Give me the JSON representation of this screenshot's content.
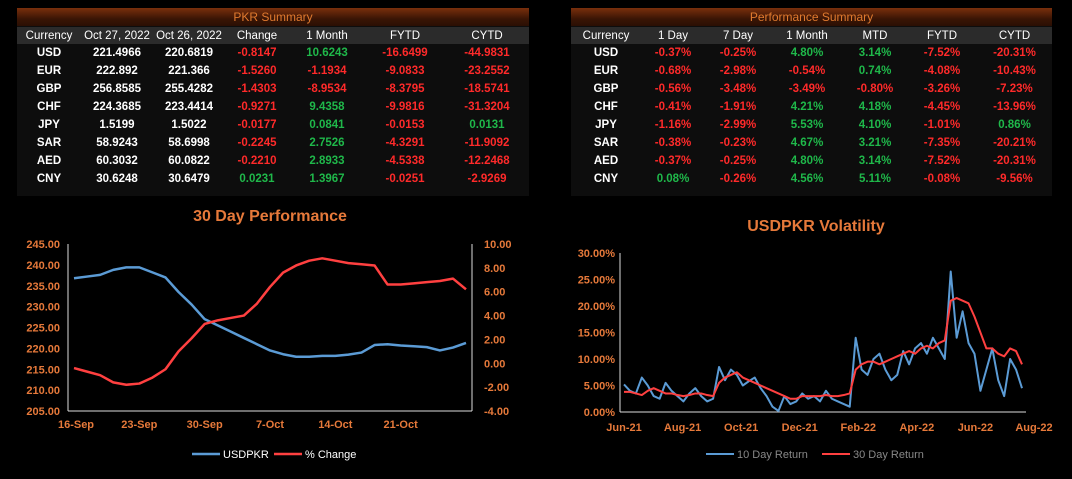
{
  "pkr_summary": {
    "title": "PKR Summary",
    "headers": [
      "Currency",
      "Oct 27, 2022",
      "Oct 26, 2022",
      "Change",
      "1 Month",
      "FYTD",
      "CYTD"
    ],
    "rows": [
      [
        "USD",
        "221.4966",
        "220.6819",
        "-0.8147",
        "10.6243",
        "-16.6499",
        "-44.9831"
      ],
      [
        "EUR",
        "222.892",
        "221.366",
        "-1.5260",
        "-1.1934",
        "-9.0833",
        "-23.2552"
      ],
      [
        "GBP",
        "256.8585",
        "255.4282",
        "-1.4303",
        "-8.9534",
        "-8.3795",
        "-18.5741"
      ],
      [
        "CHF",
        "224.3685",
        "223.4414",
        "-0.9271",
        "9.4358",
        "-9.9816",
        "-31.3204"
      ],
      [
        "JPY",
        "1.5199",
        "1.5022",
        "-0.0177",
        "0.0841",
        "-0.0153",
        "0.0131"
      ],
      [
        "SAR",
        "58.9243",
        "58.6998",
        "-0.2245",
        "2.7526",
        "-4.3291",
        "-11.9092"
      ],
      [
        "AED",
        "60.3032",
        "60.0822",
        "-0.2210",
        "2.8933",
        "-4.5338",
        "-12.2468"
      ],
      [
        "CNY",
        "30.6248",
        "30.6479",
        "0.0231",
        "1.3967",
        "-0.0251",
        "-2.9269"
      ]
    ]
  },
  "performance_summary": {
    "title": "Performance Summary",
    "headers": [
      "Currency",
      "1 Day",
      "7 Day",
      "1 Month",
      "MTD",
      "FYTD",
      "CYTD"
    ],
    "rows": [
      [
        "USD",
        "-0.37%",
        "-0.25%",
        "4.80%",
        "3.14%",
        "-7.52%",
        "-20.31%"
      ],
      [
        "EUR",
        "-0.68%",
        "-2.98%",
        "-0.54%",
        "0.74%",
        "-4.08%",
        "-10.43%"
      ],
      [
        "GBP",
        "-0.56%",
        "-3.48%",
        "-3.49%",
        "-0.80%",
        "-3.26%",
        "-7.23%"
      ],
      [
        "CHF",
        "-0.41%",
        "-1.91%",
        "4.21%",
        "4.18%",
        "-4.45%",
        "-13.96%"
      ],
      [
        "JPY",
        "-1.16%",
        "-2.99%",
        "5.53%",
        "4.10%",
        "-1.01%",
        "0.86%"
      ],
      [
        "SAR",
        "-0.38%",
        "-0.23%",
        "4.67%",
        "3.21%",
        "-7.35%",
        "-20.21%"
      ],
      [
        "AED",
        "-0.37%",
        "-0.25%",
        "4.80%",
        "3.14%",
        "-7.52%",
        "-20.31%"
      ],
      [
        "CNY",
        "0.08%",
        "-0.26%",
        "4.56%",
        "5.11%",
        "-0.08%",
        "-9.56%"
      ]
    ]
  },
  "chart_data": [
    {
      "type": "line",
      "title": "30 Day Performance",
      "x_ticks": [
        "16-Sep",
        "23-Sep",
        "30-Sep",
        "7-Oct",
        "14-Oct",
        "21-Oct"
      ],
      "y_left": {
        "ticks": [
          "205.00",
          "210.00",
          "215.00",
          "220.00",
          "225.00",
          "230.00",
          "235.00",
          "240.00",
          "245.00"
        ],
        "range": [
          205,
          245
        ]
      },
      "y_right": {
        "ticks": [
          "-4.00",
          "-2.00",
          "0.00",
          "2.00",
          "4.00",
          "6.00",
          "8.00",
          "10.00"
        ],
        "range": [
          -4,
          10
        ]
      },
      "series": [
        {
          "name": "USDPKR",
          "color": "#5b9bd5",
          "axis": "left",
          "values": [
            236.8,
            237.2,
            237.6,
            238.8,
            239.4,
            239.4,
            238.2,
            237.0,
            233.5,
            230.5,
            227.0,
            225.5,
            224.0,
            222.5,
            221.0,
            219.5,
            218.6,
            218.0,
            218.0,
            218.2,
            218.2,
            218.5,
            219.0,
            220.8,
            221.0,
            220.7,
            220.5,
            220.3,
            219.5,
            220.2,
            221.3
          ]
        },
        {
          "name": "% Change",
          "color": "#ff4040",
          "axis": "right",
          "values": [
            -0.4,
            -0.7,
            -1.0,
            -1.6,
            -1.8,
            -1.7,
            -1.2,
            -0.5,
            1.0,
            2.1,
            3.3,
            3.6,
            3.8,
            4.0,
            5.0,
            6.4,
            7.6,
            8.2,
            8.6,
            8.8,
            8.6,
            8.4,
            8.3,
            8.2,
            6.6,
            6.6,
            6.7,
            6.8,
            6.9,
            7.1,
            6.2
          ]
        }
      ],
      "legend": "bottom"
    },
    {
      "type": "line",
      "title": "USDPKR Volatility",
      "x_ticks": [
        "Jun-21",
        "Aug-21",
        "Oct-21",
        "Dec-21",
        "Feb-22",
        "Apr-22",
        "Jun-22",
        "Aug-22"
      ],
      "y_ticks": [
        "0.00%",
        "5.00%",
        "10.00%",
        "15.00%",
        "20.00%",
        "25.00%",
        "30.00%"
      ],
      "y_range": [
        0,
        30
      ],
      "series": [
        {
          "name": "10 Day Return",
          "color": "#5b9bd5",
          "values": [
            5.2,
            4.0,
            3.5,
            6.5,
            5.0,
            3.0,
            2.5,
            5.5,
            4.0,
            3.0,
            2.0,
            3.5,
            4.5,
            3.0,
            2.0,
            2.5,
            8.5,
            6.0,
            8.0,
            7.0,
            5.0,
            5.8,
            6.5,
            4.5,
            3.0,
            1.0,
            0.2,
            3.0,
            1.5,
            2.0,
            3.5,
            2.5,
            3.0,
            2.0,
            4.0,
            2.5,
            2.0,
            1.5,
            1.0,
            14.0,
            8.0,
            7.0,
            10.0,
            11.0,
            8.0,
            6.0,
            7.0,
            11.5,
            9.0,
            12.0,
            13.0,
            11.0,
            14.0,
            12.0,
            10.0,
            26.5,
            14.0,
            19.0,
            13.0,
            11.0,
            4.0,
            8.0,
            12.0,
            6.0,
            3.0,
            10.0,
            8.0,
            4.5
          ]
        },
        {
          "name": "30 Day Return",
          "color": "#ff4040",
          "values": [
            3.8,
            3.8,
            3.5,
            3.2,
            4.0,
            4.5,
            4.0,
            3.5,
            3.5,
            3.2,
            3.0,
            3.2,
            3.5,
            3.5,
            3.2,
            3.0,
            5.5,
            6.5,
            7.0,
            7.5,
            6.5,
            6.0,
            5.5,
            5.0,
            4.5,
            4.0,
            3.5,
            3.0,
            2.5,
            2.5,
            3.0,
            3.0,
            3.0,
            3.0,
            3.2,
            3.0,
            3.0,
            3.2,
            3.5,
            8.0,
            9.0,
            9.5,
            9.5,
            9.0,
            9.5,
            10.0,
            10.5,
            11.0,
            11.5,
            11.0,
            12.0,
            12.5,
            12.0,
            13.0,
            13.5,
            21.0,
            21.5,
            21.0,
            20.5,
            18.0,
            15.0,
            12.0,
            12.0,
            11.0,
            10.5,
            12.0,
            11.5,
            9.0
          ]
        }
      ],
      "legend": "bottom"
    }
  ]
}
